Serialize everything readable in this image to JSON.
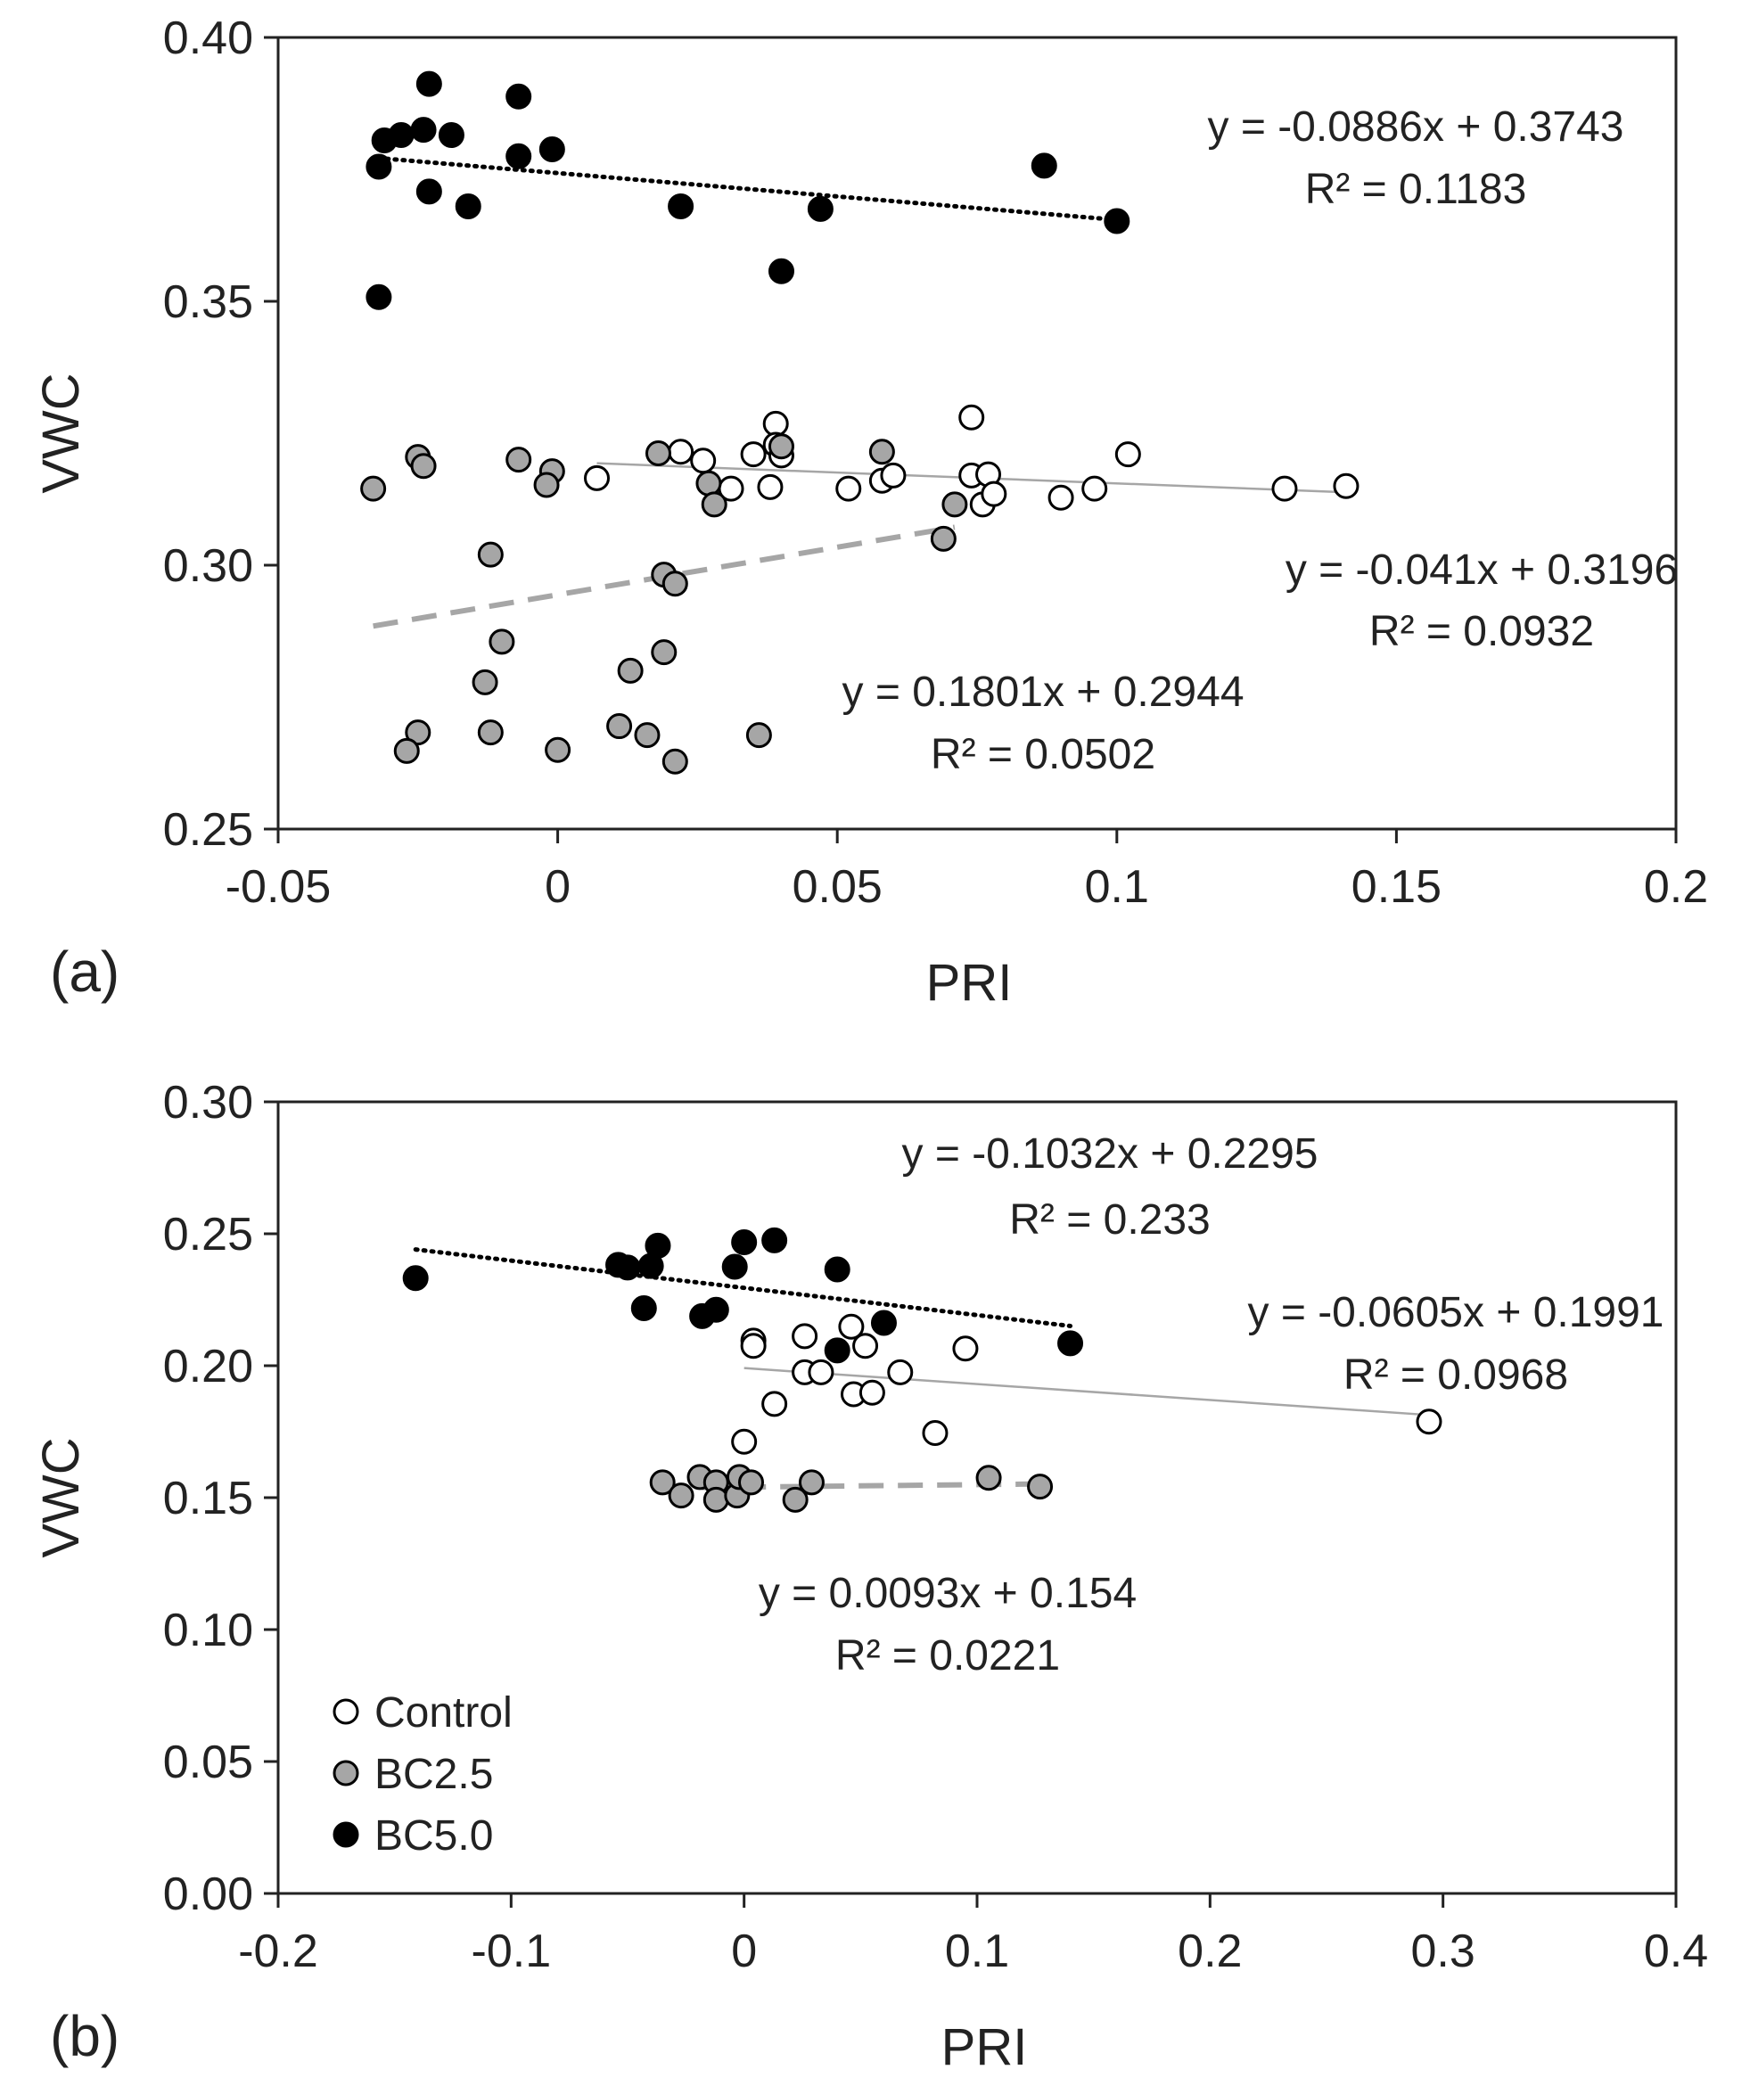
{
  "colors": {
    "control_fill": "#ffffff",
    "bc25_fill": "#a6a6a6",
    "bc50_fill": "#000000",
    "marker_stroke": "#000000",
    "control_line": "#a6a6a6",
    "bc25_line": "#a6a6a6",
    "bc50_line": "#000000",
    "axis": "#222222"
  },
  "legend": {
    "entries": [
      {
        "name": "Control",
        "color": "#ffffff"
      },
      {
        "name": "BC2.5",
        "color": "#a6a6a6"
      },
      {
        "name": "BC5.0",
        "color": "#000000"
      }
    ]
  },
  "chart_data": [
    {
      "type": "scatter",
      "panel_label": "(a)",
      "xlabel": "PRI",
      "ylabel": "VWC",
      "xlim": [
        -0.05,
        0.2
      ],
      "ylim": [
        0.25,
        0.4
      ],
      "xticks": [
        -0.05,
        0,
        0.05,
        0.1,
        0.15,
        0.2
      ],
      "yticks": [
        0.25,
        0.3,
        0.35,
        0.4
      ],
      "xtick_labels": [
        "-0.05",
        "0",
        "0.05",
        "0.1",
        "0.15",
        "0.2"
      ],
      "ytick_labels": [
        "0.25",
        "0.30",
        "0.35",
        "0.40"
      ],
      "grid": false,
      "series": [
        {
          "name": "Control",
          "points": [
            [
              0.007,
              0.3165
            ],
            [
              0.022,
              0.3215
            ],
            [
              0.026,
              0.3198
            ],
            [
              0.031,
              0.3145
            ],
            [
              0.035,
              0.321
            ],
            [
              0.038,
              0.3148
            ],
            [
              0.039,
              0.3268
            ],
            [
              0.039,
              0.3228
            ],
            [
              0.04,
              0.3208
            ],
            [
              0.052,
              0.3145
            ],
            [
              0.058,
              0.316
            ],
            [
              0.06,
              0.317
            ],
            [
              0.074,
              0.317
            ],
            [
              0.074,
              0.328
            ],
            [
              0.076,
              0.3115
            ],
            [
              0.077,
              0.3172
            ],
            [
              0.078,
              0.3135
            ],
            [
              0.09,
              0.3128
            ],
            [
              0.096,
              0.3145
            ],
            [
              0.102,
              0.321
            ],
            [
              0.13,
              0.3145
            ],
            [
              0.141,
              0.315
            ]
          ],
          "trend": {
            "slope": -0.041,
            "intercept": 0.3196,
            "x_range": [
              0.007,
              0.141
            ],
            "style": "solid"
          },
          "equation": "y = -0.041x + 0.3196",
          "r2": "R² = 0.0932"
        },
        {
          "name": "BC2.5",
          "points": [
            [
              -0.033,
              0.3145
            ],
            [
              -0.025,
              0.3205
            ],
            [
              -0.024,
              0.3188
            ],
            [
              -0.007,
              0.32
            ],
            [
              -0.001,
              0.3178
            ],
            [
              -0.002,
              0.3152
            ],
            [
              0.018,
              0.3212
            ],
            [
              0.027,
              0.3155
            ],
            [
              0.028,
              0.3115
            ],
            [
              0.04,
              0.3225
            ],
            [
              0.058,
              0.3215
            ],
            [
              0.071,
              0.3115
            ],
            [
              0.069,
              0.305
            ],
            [
              -0.012,
              0.302
            ],
            [
              0.019,
              0.2982
            ],
            [
              0.021,
              0.2965
            ],
            [
              -0.01,
              0.2855
            ],
            [
              -0.013,
              0.2778
            ],
            [
              0.013,
              0.28
            ],
            [
              0.019,
              0.2835
            ],
            [
              -0.025,
              0.2683
            ],
            [
              -0.027,
              0.2648
            ],
            [
              -0.012,
              0.2683
            ],
            [
              0,
              0.265
            ],
            [
              0.011,
              0.2695
            ],
            [
              0.016,
              0.2678
            ],
            [
              0.021,
              0.2628
            ],
            [
              0.036,
              0.2678
            ]
          ],
          "trend": {
            "slope": 0.1801,
            "intercept": 0.2944,
            "x_range": [
              -0.033,
              0.071
            ],
            "style": "dashed"
          },
          "equation": "y = 0.1801x + 0.2944",
          "r2": "R² = 0.0502"
        },
        {
          "name": "BC5.0",
          "points": [
            [
              -0.032,
              0.3755
            ],
            [
              -0.031,
              0.3805
            ],
            [
              -0.028,
              0.3815
            ],
            [
              -0.024,
              0.3825
            ],
            [
              -0.023,
              0.3912
            ],
            [
              -0.023,
              0.3708
            ],
            [
              -0.019,
              0.3815
            ],
            [
              -0.016,
              0.368
            ],
            [
              -0.007,
              0.3888
            ],
            [
              -0.007,
              0.3775
            ],
            [
              -0.001,
              0.3788
            ],
            [
              0.022,
              0.368
            ],
            [
              0.047,
              0.3675
            ],
            [
              0.04,
              0.3557
            ],
            [
              0.087,
              0.3757
            ],
            [
              0.1,
              0.3652
            ],
            [
              -0.032,
              0.3508
            ]
          ],
          "trend": {
            "slope": -0.0886,
            "intercept": 0.3743,
            "x_range": [
              -0.032,
              0.1
            ],
            "style": "dotted"
          },
          "equation": "y = -0.0886x + 0.3743",
          "r2": "R² = 0.1183"
        }
      ]
    },
    {
      "type": "scatter",
      "panel_label": "(b)",
      "xlabel": "PRI",
      "ylabel": "VWC",
      "xlim": [
        -0.2,
        0.4
      ],
      "ylim": [
        0.0,
        0.3
      ],
      "xticks": [
        -0.2,
        -0.1,
        0,
        0.1,
        0.2,
        0.3,
        0.4
      ],
      "yticks": [
        0,
        0.05,
        0.1,
        0.15,
        0.2,
        0.25,
        0.3
      ],
      "xtick_labels": [
        "-0.2",
        "-0.1",
        "0",
        "0.1",
        "0.2",
        "0.3",
        "0.4"
      ],
      "ytick_labels": [
        "0.00",
        "0.05",
        "0.10",
        "0.15",
        "0.20",
        "0.25",
        "0.30"
      ],
      "grid": false,
      "series": [
        {
          "name": "Control",
          "points": [
            [
              0.004,
              0.2095
            ],
            [
              0.004,
              0.2075
            ],
            [
              0.026,
              0.2112
            ],
            [
              0.026,
              0.1975
            ],
            [
              0.033,
              0.1975
            ],
            [
              0.046,
              0.2148
            ],
            [
              0.047,
              0.1892
            ],
            [
              0.052,
              0.2075
            ],
            [
              0.055,
              0.1898
            ],
            [
              0.067,
              0.1975
            ],
            [
              0.095,
              0.2065
            ],
            [
              0.082,
              0.1745
            ],
            [
              0.013,
              0.1855
            ],
            [
              0,
              0.1712
            ],
            [
              0.294,
              0.1788
            ]
          ],
          "trend": {
            "slope": -0.0605,
            "intercept": 0.1991,
            "x_range": [
              0,
              0.294
            ],
            "style": "solid"
          },
          "equation": "y = -0.0605x + 0.1991",
          "r2": "R² = 0.0968"
        },
        {
          "name": "BC2.5",
          "points": [
            [
              -0.035,
              0.1558
            ],
            [
              -0.027,
              0.1508
            ],
            [
              -0.019,
              0.1578
            ],
            [
              -0.012,
              0.1558
            ],
            [
              -0.012,
              0.1492
            ],
            [
              -0.003,
              0.1508
            ],
            [
              -0.002,
              0.1578
            ],
            [
              0.003,
              0.1558
            ],
            [
              0.022,
              0.1492
            ],
            [
              0.029,
              0.1558
            ],
            [
              0.105,
              0.1575
            ],
            [
              0.127,
              0.1542
            ]
          ],
          "trend": {
            "slope": 0.0093,
            "intercept": 0.154,
            "x_range": [
              -0.035,
              0.127
            ],
            "style": "dashed"
          },
          "equation": "y = 0.0093x + 0.154",
          "r2": "R² = 0.0221"
        },
        {
          "name": "BC5.0",
          "points": [
            [
              -0.141,
              0.2332
            ],
            [
              -0.054,
              0.2382
            ],
            [
              -0.05,
              0.2372
            ],
            [
              -0.04,
              0.2378
            ],
            [
              -0.037,
              0.2455
            ],
            [
              -0.043,
              0.2218
            ],
            [
              -0.018,
              0.2188
            ],
            [
              -0.012,
              0.2212
            ],
            [
              -0.004,
              0.2375
            ],
            [
              0,
              0.2468
            ],
            [
              0.013,
              0.2475
            ],
            [
              0.04,
              0.2365
            ],
            [
              0.04,
              0.2058
            ],
            [
              0.06,
              0.2162
            ],
            [
              0.14,
              0.2085
            ]
          ],
          "trend": {
            "slope": -0.1032,
            "intercept": 0.2295,
            "x_range": [
              -0.141,
              0.14
            ],
            "style": "dotted"
          },
          "equation": "y = -0.1032x + 0.2295",
          "r2": "R² = 0.233"
        }
      ]
    }
  ]
}
